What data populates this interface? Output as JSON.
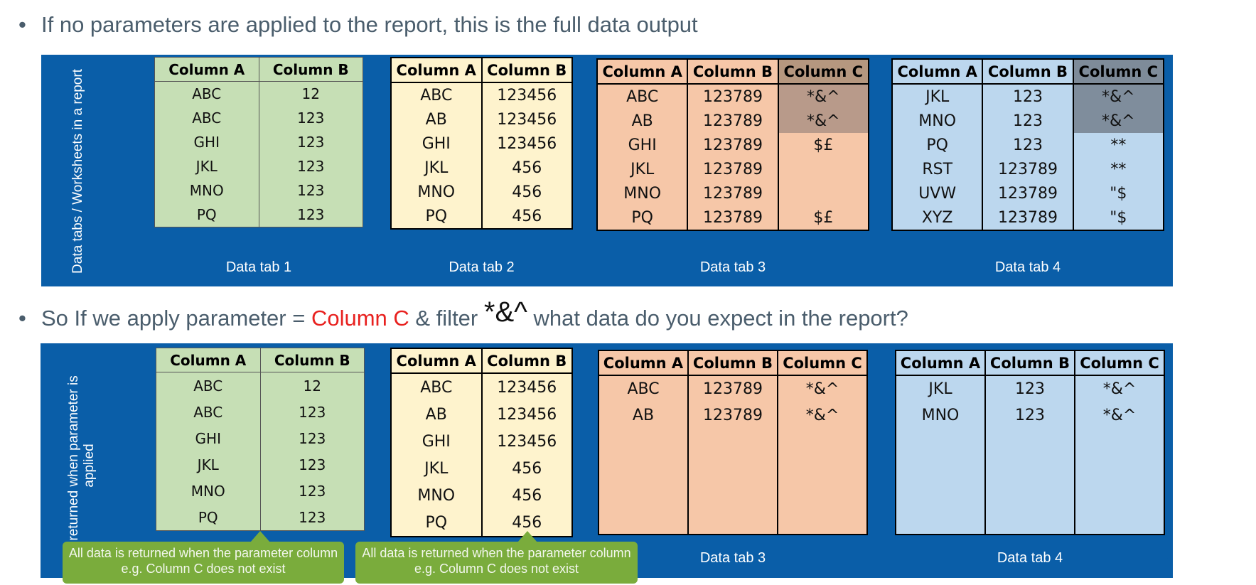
{
  "bullet1": {
    "text": "If no parameters are applied to the report, this is the full data output"
  },
  "bullet2": {
    "prefix": "So If we apply parameter = ",
    "param": "Column C",
    "middle": " & filter ",
    "symbol": "*&^",
    "suffix": " what data do you expect in the report?"
  },
  "panel1": {
    "side_label": "Data tabs / Worksheets in a report",
    "tabs": [
      {
        "label": "Data tab 1",
        "headers": [
          "Column A",
          "Column B"
        ],
        "rows": [
          [
            "ABC",
            "12"
          ],
          [
            "ABC",
            "123"
          ],
          [
            "GHI",
            "123"
          ],
          [
            "JKL",
            "123"
          ],
          [
            "MNO",
            "123"
          ],
          [
            "PQ",
            "123"
          ]
        ]
      },
      {
        "label": "Data tab 2",
        "headers": [
          "Column A",
          "Column B"
        ],
        "rows": [
          [
            "ABC",
            "123456"
          ],
          [
            "AB",
            "123456"
          ],
          [
            "GHI",
            "123456"
          ],
          [
            "JKL",
            "456"
          ],
          [
            "MNO",
            "456"
          ],
          [
            "PQ",
            "456"
          ]
        ]
      },
      {
        "label": "Data tab 3",
        "headers": [
          "Column A",
          "Column B",
          "Column C"
        ],
        "rows": [
          [
            "ABC",
            "123789",
            "*&^"
          ],
          [
            "AB",
            "123789",
            "*&^"
          ],
          [
            "GHI",
            "123789",
            "$£"
          ],
          [
            "JKL",
            "123789",
            ""
          ],
          [
            "MNO",
            "123789",
            ""
          ],
          [
            "PQ",
            "123789",
            "$£"
          ]
        ]
      },
      {
        "label": "Data tab 4",
        "headers": [
          "Column A",
          "Column B",
          "Column C"
        ],
        "rows": [
          [
            "JKL",
            "123",
            "*&^"
          ],
          [
            "MNO",
            "123",
            "*&^"
          ],
          [
            "PQ",
            "123",
            "**"
          ],
          [
            "RST",
            "123789",
            "**"
          ],
          [
            "UVW",
            "123789",
            "\"$"
          ],
          [
            "XYZ",
            "123789",
            "\"$"
          ]
        ]
      }
    ]
  },
  "panel2": {
    "side_label": "ta returned when parameter is applied",
    "tabs": [
      {
        "label": "",
        "headers": [
          "Column A",
          "Column B"
        ],
        "rows": [
          [
            "ABC",
            "12"
          ],
          [
            "ABC",
            "123"
          ],
          [
            "GHI",
            "123"
          ],
          [
            "JKL",
            "123"
          ],
          [
            "MNO",
            "123"
          ],
          [
            "PQ",
            "123"
          ]
        ]
      },
      {
        "label": "",
        "headers": [
          "Column A",
          "Column B"
        ],
        "rows": [
          [
            "ABC",
            "123456"
          ],
          [
            "AB",
            "123456"
          ],
          [
            "GHI",
            "123456"
          ],
          [
            "JKL",
            "456"
          ],
          [
            "MNO",
            "456"
          ],
          [
            "PQ",
            "456"
          ]
        ]
      },
      {
        "label": "Data tab 3",
        "headers": [
          "Column A",
          "Column B",
          "Column C"
        ],
        "rows": [
          [
            "ABC",
            "123789",
            "*&^"
          ],
          [
            "AB",
            "123789",
            "*&^"
          ],
          [
            "",
            "",
            ""
          ],
          [
            "",
            "",
            ""
          ],
          [
            "",
            "",
            ""
          ],
          [
            "",
            "",
            ""
          ]
        ]
      },
      {
        "label": "Data tab 4",
        "headers": [
          "Column A",
          "Column B",
          "Column C"
        ],
        "rows": [
          [
            "JKL",
            "123",
            "*&^"
          ],
          [
            "MNO",
            "123",
            "*&^"
          ],
          [
            "",
            "",
            ""
          ],
          [
            "",
            "",
            ""
          ],
          [
            "",
            "",
            ""
          ],
          [
            "",
            "",
            ""
          ]
        ]
      }
    ],
    "notes": [
      {
        "text": "All data is returned when the parameter column e.g. Column C does not exist"
      },
      {
        "text": "All data is returned when the parameter column e.g. Column C does not exist"
      }
    ],
    "stray_char": "n"
  },
  "colors": {
    "band": "#0a5ea8",
    "green": "#c6dfb5",
    "yellow": "#fef3cd",
    "orange": "#f6c7a8",
    "blue": "#bcd7ee",
    "note": "#7aac3c",
    "param_red": "#e8211f"
  }
}
